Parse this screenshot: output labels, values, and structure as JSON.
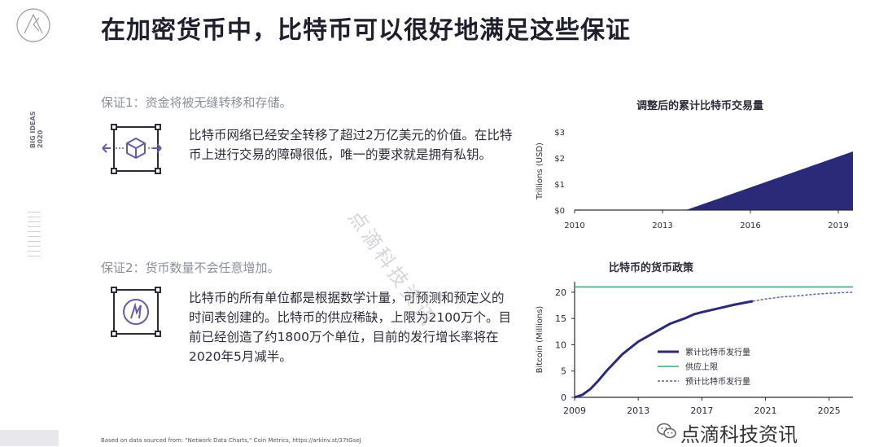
{
  "slide": {
    "title": "在加密货币中，比特币可以很好地满足这些保证",
    "side_label_line1": "BIG IDEAS",
    "side_label_line2": "2020"
  },
  "guarantees": [
    {
      "heading": "保证1：资金将被无缝转移和存储。",
      "text": "比特币网络已经安全转移了超过2万亿美元的价值。在比特币上进行交易的障碍很低，唯一的要求就是拥有私钥。",
      "icon": "cube-transfer-icon"
    },
    {
      "heading": "保证2：货币数量不会任意增加。",
      "text": "比特币的所有单位都是根据数学计量，可预测和预定义的时间表创建的。比特币的供应稀缺，上限为2100万个。目前已经创造了约1800万个单位，目前的发行增长率将在2020年5月减半。",
      "icon": "bitcoin-emblem-icon"
    }
  ],
  "watermark": "点滴科技资讯",
  "footnote": "Based on data sourced from: \"Network Data Charts,\" Coin Metrics, https://arkinv.st/37tGseJ",
  "wechat": {
    "label": "点滴科技资讯",
    "icon": "wechat-icon"
  },
  "colors": {
    "navy": "#2b2a78",
    "green": "#52b788",
    "purple": "#6a5aa8",
    "text": "#2b2b3a"
  },
  "chart_data": [
    {
      "type": "area",
      "title": "调整后的累计比特币交易量",
      "xlabel": "",
      "ylabel": "Trillions (USD)",
      "x_ticks": [
        "2010",
        "2013",
        "2016",
        "2019"
      ],
      "y_ticks": [
        "$0",
        "$1",
        "$2",
        "$3"
      ],
      "xlim": [
        2010,
        2019.5
      ],
      "ylim": [
        0,
        3
      ],
      "series": [
        {
          "x": [
            2010,
            2013.8,
            2019.5
          ],
          "values": [
            0,
            0,
            2.25
          ]
        }
      ]
    },
    {
      "type": "line",
      "title": "比特币的货币政策",
      "xlabel": "",
      "ylabel": "Bitcoin (Millions)",
      "x_ticks": [
        "2009",
        "2013",
        "2017",
        "2021",
        "2025"
      ],
      "y_ticks": [
        "0",
        "5",
        "10",
        "15",
        "20"
      ],
      "xlim": [
        2009,
        2026.5
      ],
      "ylim": [
        0,
        22
      ],
      "legend_position": "center-right",
      "series": [
        {
          "name": "累计比特币发行量",
          "style": "solid",
          "x": [
            2009,
            2009.5,
            2010,
            2010.5,
            2011,
            2012,
            2013,
            2014,
            2015,
            2016,
            2016.5,
            2017,
            2018,
            2019,
            2020.2
          ],
          "values": [
            0,
            0.5,
            1.6,
            3.2,
            5,
            8.2,
            10.6,
            12.3,
            14.0,
            15.1,
            15.8,
            16.2,
            16.9,
            17.6,
            18.3
          ]
        },
        {
          "name": "供应上限",
          "style": "solid",
          "x": [
            2009,
            2026.5
          ],
          "values": [
            21,
            21
          ]
        },
        {
          "name": "预计比特币发行量",
          "style": "dashed",
          "x": [
            2020.2,
            2021,
            2022,
            2023,
            2024,
            2025,
            2026.5
          ],
          "values": [
            18.3,
            18.7,
            19.1,
            19.3,
            19.6,
            19.8,
            20.0
          ]
        }
      ]
    }
  ]
}
